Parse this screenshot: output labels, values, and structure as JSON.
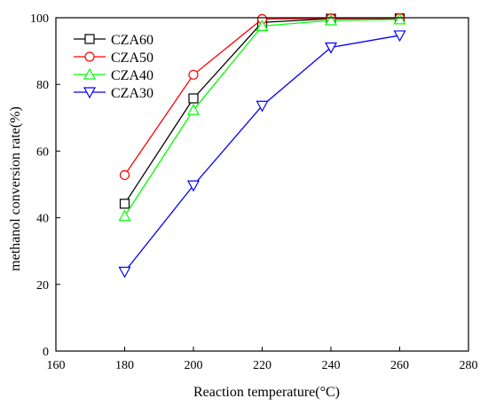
{
  "chart_data": {
    "type": "line",
    "xlabel": "Reaction temperature(°C)",
    "ylabel": "methanol conversion rate(%)",
    "xlim": [
      160,
      280
    ],
    "ylim": [
      0,
      100
    ],
    "xticks": [
      160,
      180,
      200,
      220,
      240,
      260,
      280
    ],
    "xtick_labels": [
      "160",
      "180",
      "200",
      "220",
      "240",
      "260",
      "280"
    ],
    "yticks": [
      0,
      20,
      40,
      60,
      80,
      100
    ],
    "ytick_labels": [
      "0",
      "20",
      "40",
      "60",
      "80",
      "100"
    ],
    "grid": false,
    "legend_position": "top-left",
    "x": [
      180,
      200,
      220,
      240,
      260
    ],
    "series": [
      {
        "name": "CZA60",
        "values": [
          44.2,
          75.8,
          98.6,
          99.7,
          99.8
        ],
        "color": "#000000",
        "marker": "square"
      },
      {
        "name": "CZA50",
        "values": [
          52.8,
          82.9,
          99.6,
          99.8,
          99.9
        ],
        "color": "#ff0000",
        "marker": "circle"
      },
      {
        "name": "CZA40",
        "values": [
          40.5,
          72.3,
          97.5,
          99.2,
          99.5
        ],
        "color": "#00ff00",
        "marker": "triangle-up"
      },
      {
        "name": "CZA30",
        "values": [
          23.8,
          49.7,
          73.6,
          91.1,
          94.7
        ],
        "color": "#0000ff",
        "marker": "triangle-down"
      }
    ]
  }
}
